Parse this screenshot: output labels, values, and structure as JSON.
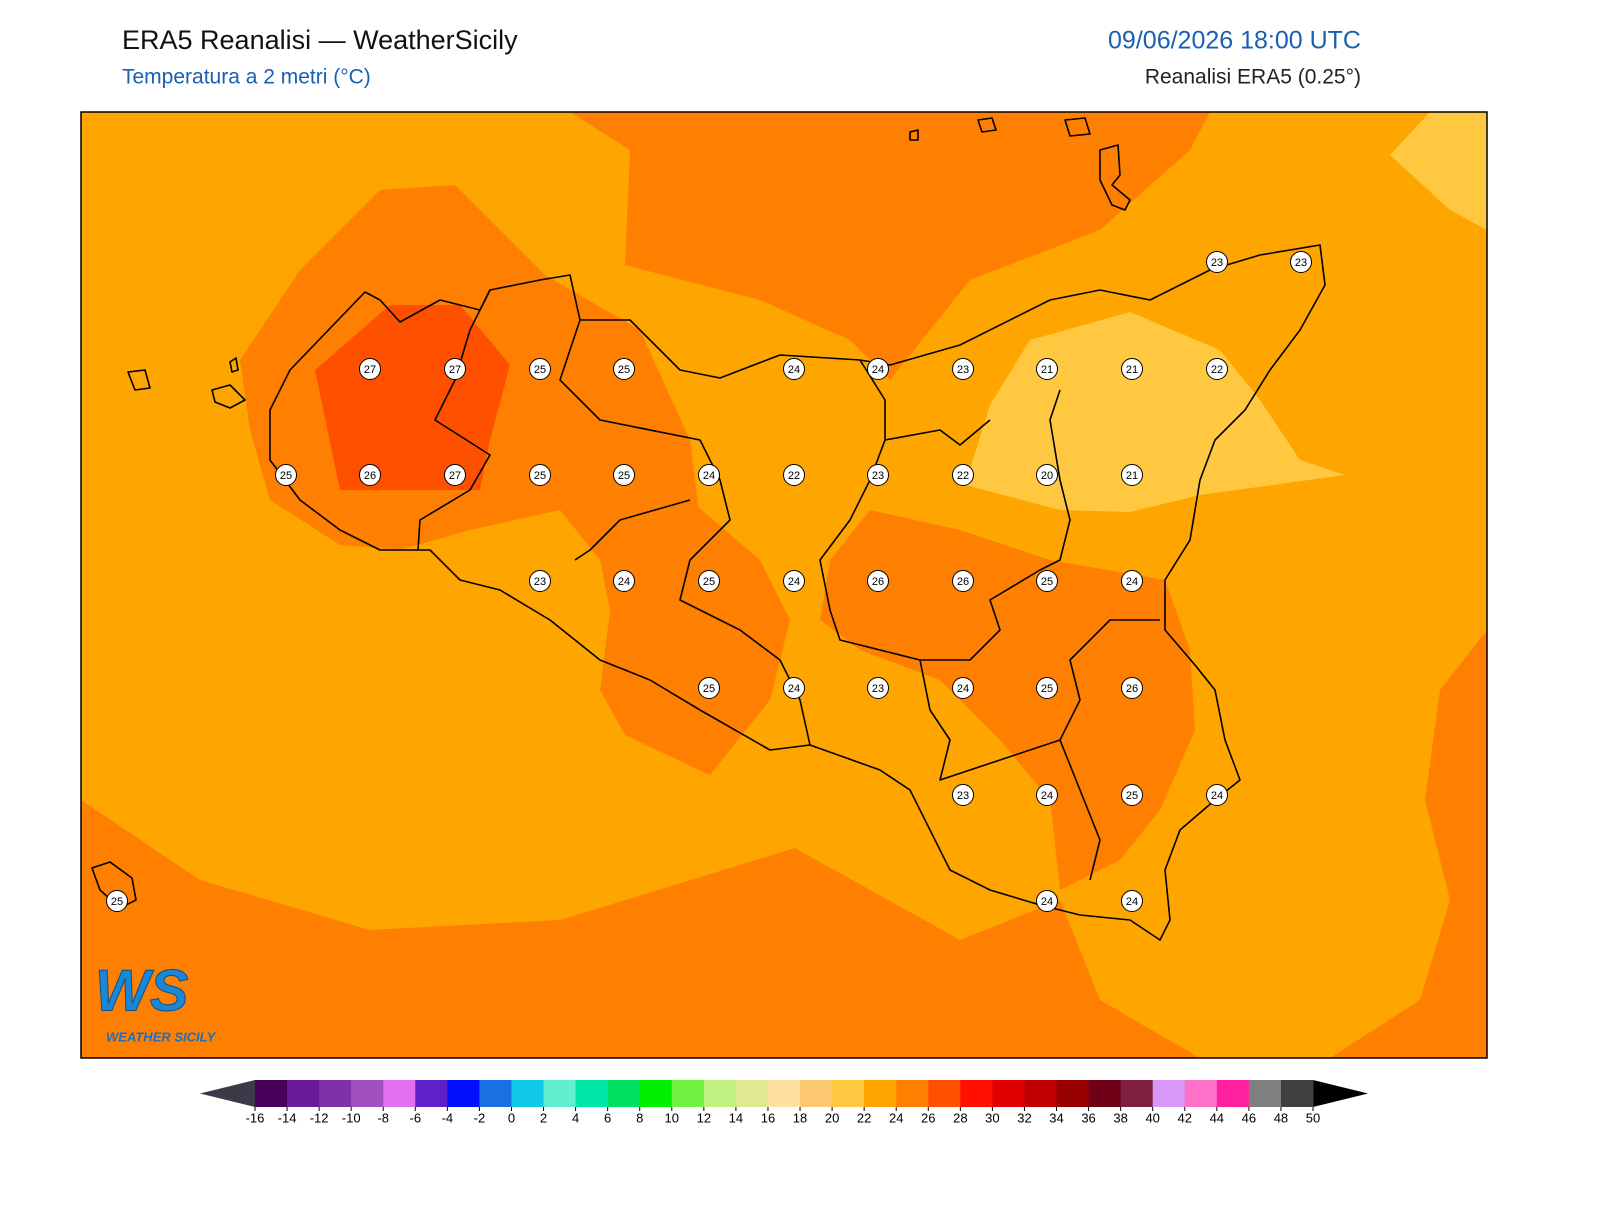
{
  "header": {
    "title": "ERA5 Reanalisi — WeatherSicily",
    "subtitle": "Temperatura a 2 metri (°C)",
    "datetime": "09/06/2026 18:00 UTC",
    "source": "Reanalisi ERA5 (0.25°)"
  },
  "stations": [
    23,
    23,
    27,
    27,
    25,
    25,
    24,
    24,
    23,
    21,
    21,
    22,
    25,
    26,
    27,
    25,
    25,
    24,
    22,
    23,
    22,
    20,
    21,
    23,
    24,
    25,
    24,
    26,
    26,
    25,
    24,
    25,
    24,
    23,
    24,
    25,
    26,
    23,
    24,
    25,
    24,
    25,
    24,
    24
  ],
  "colorbar": {
    "ticks": [
      -16,
      -14,
      -12,
      -10,
      -8,
      -6,
      -4,
      -2,
      0,
      2,
      4,
      6,
      8,
      10,
      12,
      14,
      16,
      18,
      20,
      22,
      24,
      26,
      28,
      30,
      32,
      34,
      36,
      38,
      40,
      42,
      44,
      46,
      48,
      50
    ],
    "colors": [
      "#46005a",
      "#6a1a9a",
      "#8030a8",
      "#a050c0",
      "#e070f0",
      "#6020c8",
      "#0010ff",
      "#1a70e0",
      "#10c8e8",
      "#60f0d0",
      "#00e8a8",
      "#00e060",
      "#00f000",
      "#70f040",
      "#c0f080",
      "#e0e890",
      "#ffe0a0",
      "#fcc870",
      "#ffc840",
      "#ffa500",
      "#ff8000",
      "#ff5000",
      "#ff1000",
      "#e00000",
      "#c00000",
      "#980000",
      "#700018",
      "#802040",
      "#d898f8",
      "#ff70c8",
      "#ff20a0",
      "#808080",
      "#404040"
    ],
    "under_color": "#3a3a48",
    "over_color": "#000000"
  },
  "logo": {
    "mark": "WS",
    "caption": "WEATHER SICILY"
  }
}
